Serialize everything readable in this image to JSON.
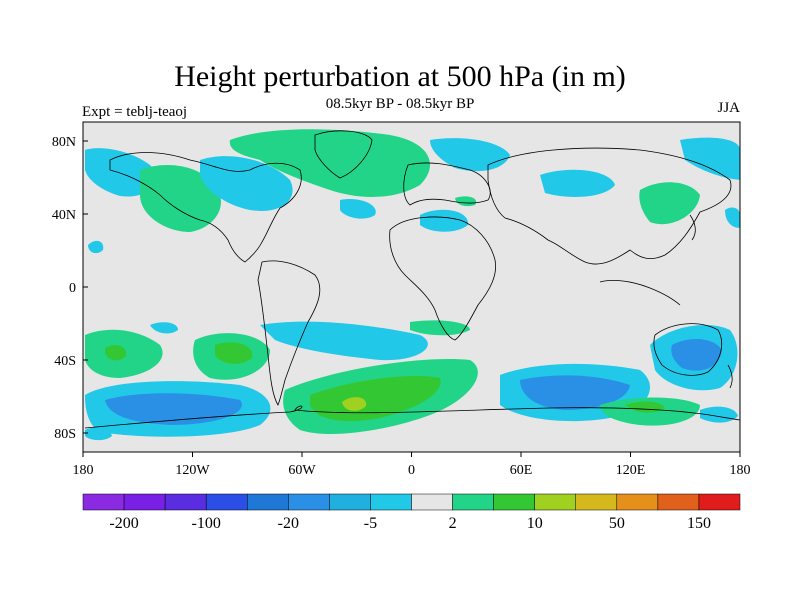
{
  "title": "Height perturbation at 500 hPa (in m)",
  "subtitle": "08.5kyr BP - 08.5kyr BP",
  "experiment_label": "Expt = teblj-teaoj",
  "season_label": "JJA",
  "map": {
    "lat_ticks": [
      "80N",
      "40N",
      "0",
      "40S",
      "80S"
    ],
    "lon_ticks": [
      "180",
      "120W",
      "60W",
      "0",
      "60E",
      "120E",
      "180"
    ]
  },
  "colorbar": {
    "colors": [
      "#8a2be2",
      "#7a1fe6",
      "#5a2ee0",
      "#2a4ee6",
      "#1f78d6",
      "#2a90e6",
      "#1fb0e0",
      "#22c8e8",
      "#e6e6e6",
      "#22d488",
      "#33c833",
      "#a0d020",
      "#d4b81c",
      "#e6901c",
      "#e0601c",
      "#e01c1c"
    ],
    "labels": [
      "-200",
      "-100",
      "-20",
      "-5",
      "2",
      "10",
      "50",
      "150"
    ]
  },
  "chart_data": {
    "type": "map-contour",
    "variable": "Height perturbation at 500 hPa (in m)"
  }
}
